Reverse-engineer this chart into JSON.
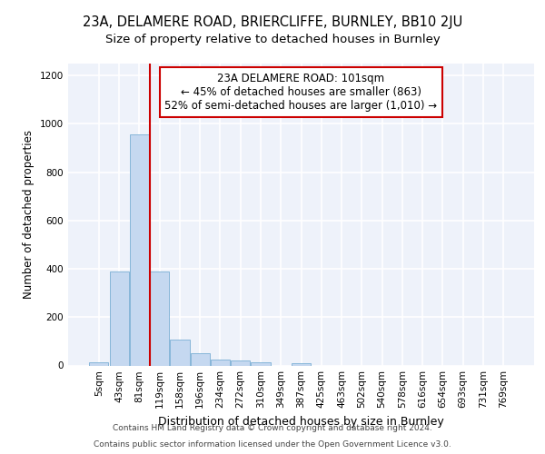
{
  "title1": "23A, DELAMERE ROAD, BRIERCLIFFE, BURNLEY, BB10 2JU",
  "title2": "Size of property relative to detached houses in Burnley",
  "xlabel": "Distribution of detached houses by size in Burnley",
  "ylabel": "Number of detached properties",
  "categories": [
    "5sqm",
    "43sqm",
    "81sqm",
    "119sqm",
    "158sqm",
    "196sqm",
    "234sqm",
    "272sqm",
    "310sqm",
    "349sqm",
    "387sqm",
    "425sqm",
    "463sqm",
    "502sqm",
    "540sqm",
    "578sqm",
    "616sqm",
    "654sqm",
    "693sqm",
    "731sqm",
    "769sqm"
  ],
  "values": [
    15,
    390,
    955,
    390,
    108,
    50,
    23,
    20,
    13,
    0,
    10,
    0,
    0,
    0,
    0,
    0,
    0,
    0,
    0,
    0,
    0
  ],
  "bar_color": "#c5d8f0",
  "bar_edge_color": "#7aafd4",
  "vline_x_index": 2,
  "vline_color": "#cc0000",
  "annotation_text": "23A DELAMERE ROAD: 101sqm\n← 45% of detached houses are smaller (863)\n52% of semi-detached houses are larger (1,010) →",
  "annotation_box_edgecolor": "#cc0000",
  "ylim": [
    0,
    1250
  ],
  "yticks": [
    0,
    200,
    400,
    600,
    800,
    1000,
    1200
  ],
  "footer1": "Contains HM Land Registry data © Crown copyright and database right 2024.",
  "footer2": "Contains public sector information licensed under the Open Government Licence v3.0.",
  "bg_color": "#eef2fa",
  "grid_color": "#ffffff",
  "title1_fontsize": 10.5,
  "title2_fontsize": 9.5,
  "ylabel_fontsize": 8.5,
  "xlabel_fontsize": 9,
  "annot_fontsize": 8.5,
  "tick_fontsize": 7.5,
  "footer_fontsize": 6.5
}
